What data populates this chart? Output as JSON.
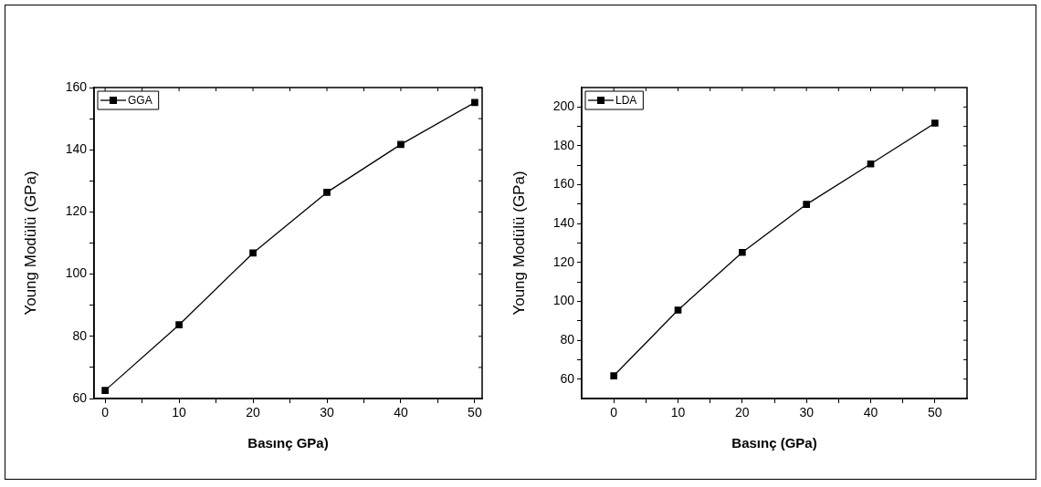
{
  "chart_data": [
    {
      "type": "line",
      "xlabel": "Basınç GPa)",
      "ylabel": "Young Modülü (GPa)",
      "x": [
        0,
        10,
        20,
        30,
        40,
        50
      ],
      "series": [
        {
          "name": "GGA",
          "color": "#000000",
          "values": [
            62.6,
            83.7,
            106.8,
            126.3,
            141.7,
            155.2
          ]
        }
      ],
      "xlim": [
        -1.5,
        51
      ],
      "xticks": [
        0,
        {
          "value": 5,
          "label": null
        },
        10,
        {
          "value": 15,
          "label": null
        },
        20,
        {
          "value": 25,
          "label": null
        },
        30,
        {
          "value": 35,
          "label": null
        },
        40,
        {
          "value": 45,
          "label": null
        },
        50
      ],
      "ylim": [
        60,
        160
      ],
      "yticks": [
        60,
        {
          "value": 70,
          "label": null
        },
        80,
        {
          "value": 90,
          "label": null
        },
        100,
        {
          "value": 110,
          "label": null
        },
        120,
        {
          "value": 130,
          "label": null
        },
        140,
        {
          "value": 150,
          "label": null
        },
        160
      ],
      "legend": "top left",
      "marker": "square",
      "line_style": "solid"
    },
    {
      "type": "line",
      "xlabel": "Basınç (GPa)",
      "ylabel": "Young Modülü (GPa)",
      "x": [
        0,
        10,
        20,
        30,
        40,
        50
      ],
      "series": [
        {
          "name": "LDA",
          "color": "#000000",
          "values": [
            61.7,
            95.5,
            125.2,
            149.9,
            170.7,
            191.7
          ]
        }
      ],
      "xlim": [
        -5,
        55
      ],
      "xticks": [
        0,
        {
          "value": 5,
          "label": null
        },
        10,
        {
          "value": 15,
          "label": null
        },
        20,
        {
          "value": 25,
          "label": null
        },
        30,
        {
          "value": 35,
          "label": null
        },
        40,
        {
          "value": 45,
          "label": null
        },
        50
      ],
      "ylim": [
        50,
        210
      ],
      "yticks": [
        60,
        {
          "value": 70,
          "label": null
        },
        80,
        {
          "value": 90,
          "label": null
        },
        100,
        {
          "value": 110,
          "label": null
        },
        120,
        {
          "value": 130,
          "label": null
        },
        140,
        {
          "value": 150,
          "label": null
        },
        160,
        {
          "value": 170,
          "label": null
        },
        180,
        {
          "value": 190,
          "label": null
        },
        200
      ],
      "legend": "top left",
      "marker": "square",
      "line_style": "solid"
    }
  ]
}
